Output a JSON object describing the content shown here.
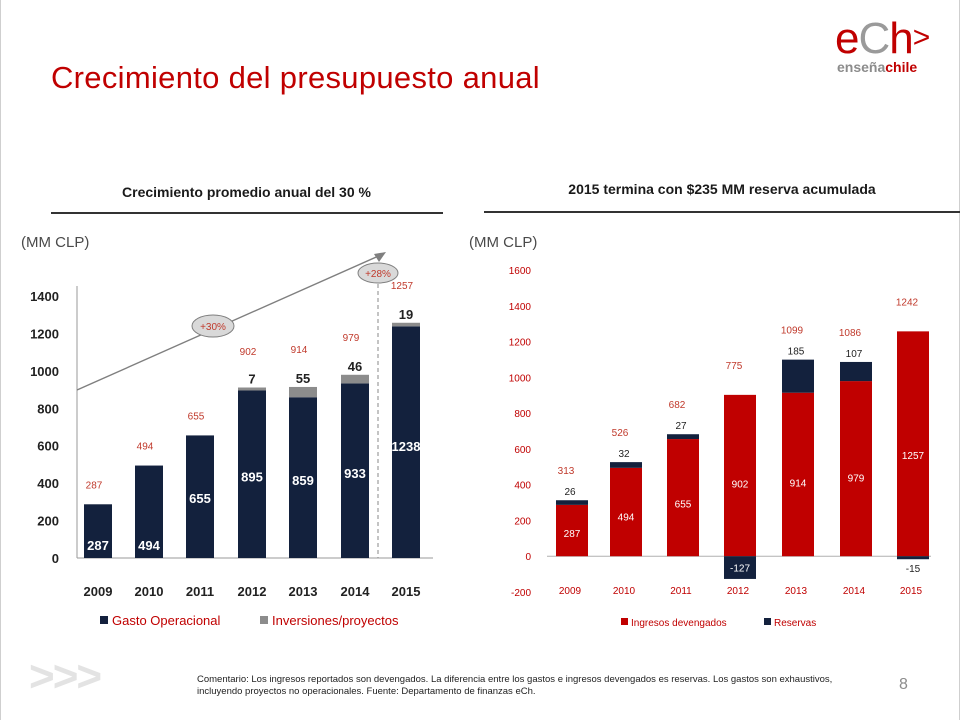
{
  "slide": {
    "title": "Crecimiento del presupuesto anual",
    "logo": {
      "main_e": "e",
      "main_c": "C",
      "main_h": "h",
      "main_gt": ">",
      "sub_a": "enseña",
      "sub_b": "chile"
    },
    "left_heading": "Crecimiento promedio  anual del 30 %",
    "right_heading": "2015 termina con $235 MM reserva acumulada",
    "left_unit": "(MM CLP)",
    "right_unit": "(MM CLP)",
    "footer_arrows": ">>>",
    "comment": "Comentario:  Los ingresos reportados son devengados.  La diferencia entre los gastos e ingresos devengados es  reservas. Los gastos son exhaustivos, incluyendo  proyectos  no operacionales.   Fuente: Departamento de finanzas eCh.",
    "page_number": "8"
  },
  "colors": {
    "accent_red": "#c00000",
    "navy": "#13213d",
    "gray": "#8c8c8c",
    "annot_red": "#c0392b"
  },
  "chart_data": [
    {
      "type": "bar",
      "stacked": true,
      "categories": [
        "2009",
        "2010",
        "2011",
        "2012",
        "2013",
        "2014",
        "2015"
      ],
      "series": [
        {
          "name": "Gasto Operacional",
          "color": "#13213d",
          "values": [
            287,
            494,
            655,
            895,
            859,
            933,
            1238
          ]
        },
        {
          "name": "Inversiones/proyectos",
          "color": "#8c8c8c",
          "values": [
            0,
            0,
            0,
            7,
            55,
            46,
            19
          ]
        }
      ],
      "series_labels": [
        [
          "287",
          "494",
          "655",
          "895",
          "859",
          "933",
          "1238"
        ],
        [
          "",
          "",
          "",
          "7",
          "55",
          "46",
          "19"
        ]
      ],
      "totals": [
        "287",
        "494",
        "655",
        "902",
        "914",
        "979",
        "1257"
      ],
      "ylim": [
        0,
        1400
      ],
      "yticks": [
        "0",
        "200",
        "400",
        "600",
        "800",
        "1000",
        "1200",
        "1400"
      ],
      "annotations": [
        "+30%",
        "+28%"
      ],
      "legend_position": "bottom"
    },
    {
      "type": "bar",
      "stacked": true,
      "categories": [
        "2009",
        "2010",
        "2011",
        "2012",
        "2013",
        "2014",
        "2015"
      ],
      "series": [
        {
          "name": "Ingresos devengados",
          "color": "#c00000",
          "values": [
            287,
            494,
            655,
            902,
            914,
            979,
            1257
          ]
        },
        {
          "name": "Reservas",
          "color": "#13213d",
          "values": [
            26,
            32,
            27,
            -127,
            185,
            107,
            -15
          ]
        }
      ],
      "series_labels": [
        [
          "287",
          "494",
          "655",
          "902",
          "914",
          "979",
          "1257"
        ],
        [
          "26",
          "32",
          "27",
          "-127",
          "185",
          "107",
          "-15"
        ]
      ],
      "totals": [
        "313",
        "526",
        "682",
        "775",
        "1099",
        "1086",
        "1242"
      ],
      "ylim": [
        -200,
        1600
      ],
      "yticks": [
        "-200",
        "0",
        "200",
        "400",
        "600",
        "800",
        "1000",
        "1200",
        "1400",
        "1600"
      ],
      "legend_position": "bottom"
    }
  ]
}
